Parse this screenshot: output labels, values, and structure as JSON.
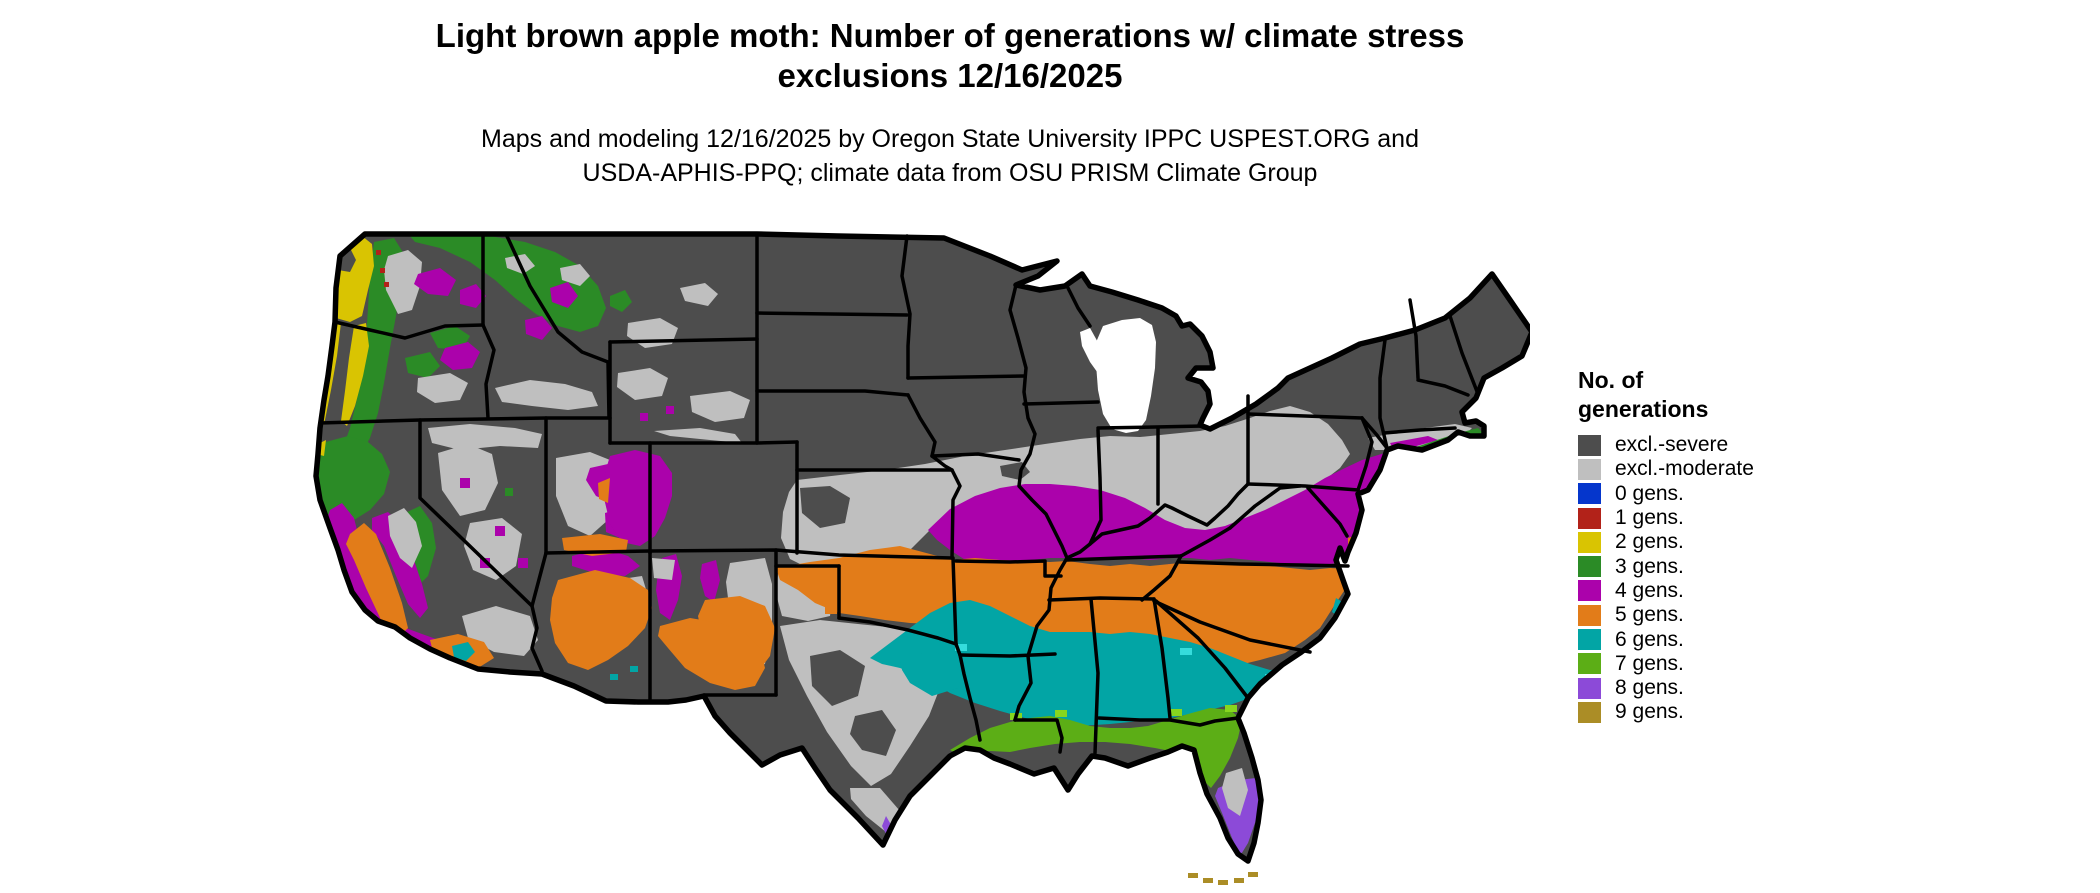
{
  "header": {
    "title_line1": "Light brown apple moth: Number of generations w/ climate stress",
    "title_line2": "exclusions 12/16/2025",
    "subtitle_line1": "Maps and modeling 12/16/2025 by Oregon State University IPPC USPEST.ORG and",
    "subtitle_line2": "USDA-APHIS-PPQ; climate data from OSU PRISM Climate Group"
  },
  "legend": {
    "title": "No. of generations",
    "items": [
      {
        "label": "excl.-severe",
        "key": "severe"
      },
      {
        "label": "excl.-moderate",
        "key": "moderate"
      },
      {
        "label": "0 gens.",
        "key": "g0"
      },
      {
        "label": "1 gens.",
        "key": "g1"
      },
      {
        "label": "2 gens.",
        "key": "g2"
      },
      {
        "label": "3 gens.",
        "key": "g3"
      },
      {
        "label": "4 gens.",
        "key": "g4"
      },
      {
        "label": "5 gens.",
        "key": "g5"
      },
      {
        "label": "6 gens.",
        "key": "g6"
      },
      {
        "label": "7 gens.",
        "key": "g7"
      },
      {
        "label": "8 gens.",
        "key": "g8"
      },
      {
        "label": "9 gens.",
        "key": "g9"
      }
    ]
  },
  "chart_data": {
    "type": "heatmap",
    "title": "Light brown apple moth: Number of generations w/ climate stress exclusions 12/16/2025",
    "subtitle": "Maps and modeling 12/16/2025 by Oregon State University IPPC USPEST.ORG and USDA-APHIS-PPQ; climate data from OSU PRISM Climate Group",
    "map_type": "choropleth-raster, continental United States with state borders",
    "legend_title": "No. of generations",
    "classes": [
      "excl.-severe",
      "excl.-moderate",
      "0 gens.",
      "1 gens.",
      "2 gens.",
      "3 gens.",
      "4 gens.",
      "5 gens.",
      "6 gens.",
      "7 gens.",
      "8 gens.",
      "9 gens."
    ],
    "regional_pattern": {
      "excl.-severe": "northern tier: Montana, Dakotas, Minnesota, Wisconsin, Michigan, interior Northeast, high Rockies, eastern Colorado, south Texas brush country, desert Southwest",
      "excl.-moderate": "central plains Kansas-Missouri-Illinois-Indiana-Ohio valley band, Great Basin patches, central Texas, central Florida pocket",
      "2 gens.": "western Washington and Willamette Valley / coastal Oregon",
      "3 gens.": "Cascades, northeast Washington-Idaho panhandle, northern California, southern New England coast, Appalachian spots",
      "4 gens.": "Kentucky-Virginia mid-Atlantic band to New Jersey/Long Island, Colorado Rockies, Sierra foothills, coast ranges, scattered interior-west mountains",
      "5 gens.": "Oklahoma-Arkansas-Tennessee-Carolinas band, California Central Valley, southern Arizona/New Mexico",
      "6 gens.": "east Texas through Louisiana-Mississippi-Alabama-Georgia coastal plain",
      "7 gens.": "Gulf coast fringe, north Florida, south Texas coast",
      "8 gens.": "south Florida peninsula, Texas barrier islands",
      "9 gens.": "Florida Keys"
    }
  },
  "map": {
    "palette": {
      "severe": "#4D4D4D",
      "moderate": "#BFBFBF",
      "g0": "#0536CC",
      "g1": "#B22219",
      "g2": "#D9C402",
      "g3": "#2B8B26",
      "g4": "#AB02AB",
      "g5": "#E27C19",
      "g6": "#02A5A5",
      "g7": "#5CAE16",
      "g8": "#8C4AD8",
      "g9": "#AB8D26",
      "lime": "#86D61F",
      "cyan": "#35DCDC",
      "water": "#FFFFFF",
      "border": "#000000"
    }
  }
}
